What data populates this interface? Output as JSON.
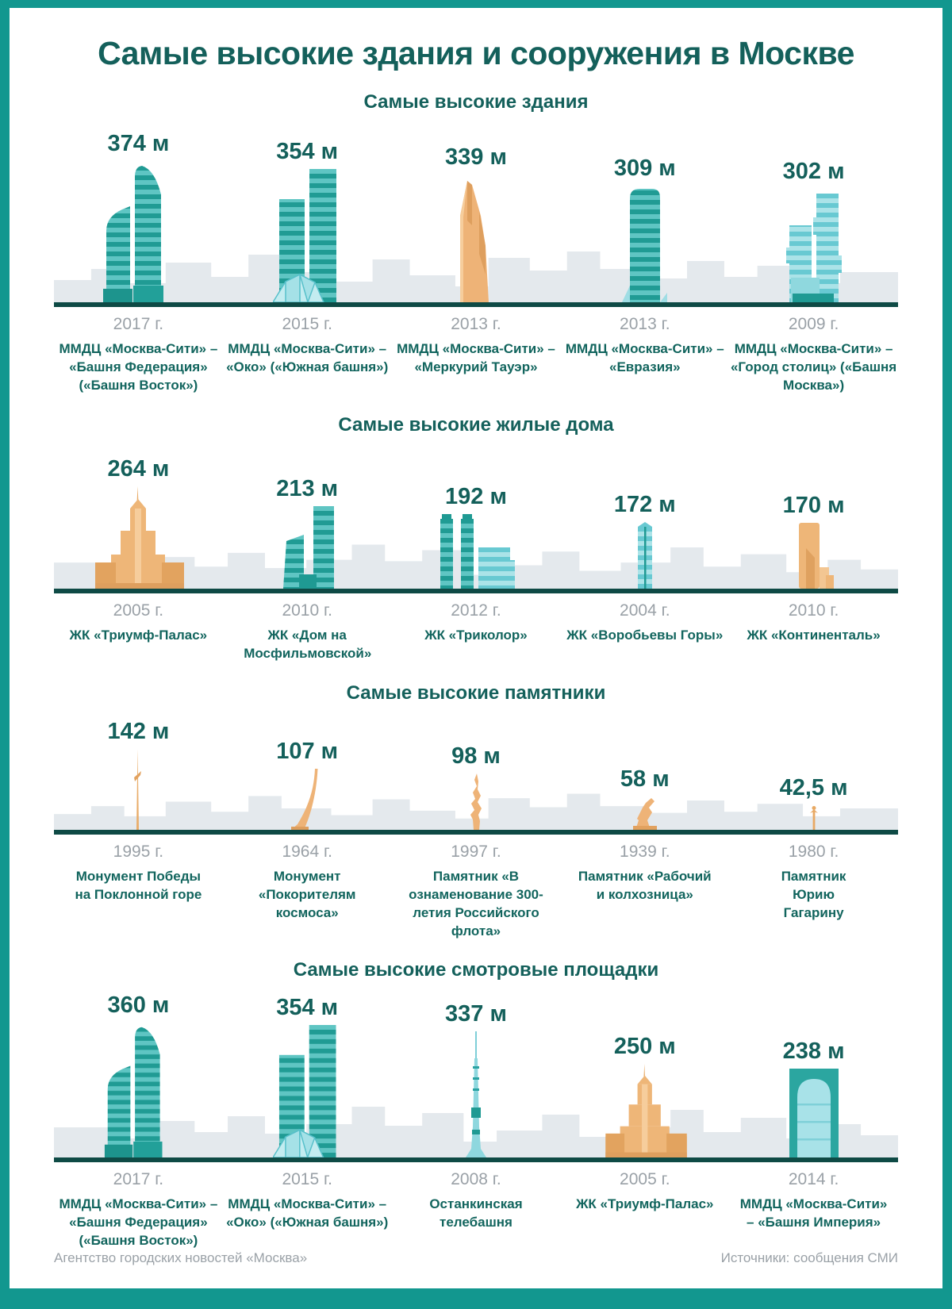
{
  "page": {
    "title": "Самые высокие здания и сооружения в Москве",
    "footer_left": "Агентство городских новостей «Москва»",
    "footer_right": "Источники: сообщения СМИ"
  },
  "colors": {
    "frame": "#12978f",
    "heading": "#14605b",
    "value_text": "#14605b",
    "year_text": "#9aa1a7",
    "name_text": "#12655e",
    "ground_line": "#0e4a45",
    "skyline": "#e4e9ed",
    "teal_dark": "#209b94",
    "teal_light": "#5fc5c3",
    "aqua_dark": "#68c9d2",
    "aqua_light": "#abe3e8",
    "orange": "#eeb377"
  },
  "sections": [
    {
      "title": "Самые высокие здания",
      "items": [
        {
          "value": "374 м",
          "year": "2017 г.",
          "name": "ММДЦ «Москва-Сити» – «Башня Федерация» («Башня Восток»)"
        },
        {
          "value": "354 м",
          "year": "2015 г.",
          "name": "ММДЦ «Москва-Сити» – «Око» («Южная башня»)"
        },
        {
          "value": "339 м",
          "year": "2013 г.",
          "name": "ММДЦ «Москва-Сити» – «Меркурий Тауэр»"
        },
        {
          "value": "309 м",
          "year": "2013 г.",
          "name": "ММДЦ «Москва-Сити» – «Евразия»"
        },
        {
          "value": "302 м",
          "year": "2009 г.",
          "name": "ММДЦ «Москва-Сити» – «Город столиц» («Башня Москва»)"
        }
      ]
    },
    {
      "title": "Самые высокие жилые дома",
      "items": [
        {
          "value": "264 м",
          "year": "2005 г.",
          "name": "ЖК «Триумф-Палас»"
        },
        {
          "value": "213 м",
          "year": "2010 г.",
          "name": "ЖК «Дом на Мосфильмовской»"
        },
        {
          "value": "192 м",
          "year": "2012 г.",
          "name": "ЖК «Триколор»"
        },
        {
          "value": "172 м",
          "year": "2004 г.",
          "name": "ЖК «Воробьевы Горы»"
        },
        {
          "value": "170 м",
          "year": "2010 г.",
          "name": "ЖК «Континенталь»"
        }
      ]
    },
    {
      "title": "Самые высокие памятники",
      "items": [
        {
          "value": "142 м",
          "year": "1995 г.",
          "name": "Монумент Победы на Поклонной горе"
        },
        {
          "value": "107 м",
          "year": "1964 г.",
          "name": "Монумент «Покорителям космоса»"
        },
        {
          "value": "98 м",
          "year": "1997 г.",
          "name": "Памятник «В ознаменование 300-летия Российского флота»"
        },
        {
          "value": "58 м",
          "year": "1939 г.",
          "name": "Памятник «Рабочий и колхозница»"
        },
        {
          "value": "42,5 м",
          "year": "1980 г.",
          "name": "Памятник Юрию Гагарину"
        }
      ]
    },
    {
      "title": "Самые высокие смотровые площадки",
      "items": [
        {
          "value": "360 м",
          "year": "2017 г.",
          "name": "ММДЦ «Москва-Сити» – «Башня Федерация» («Башня Восток»)"
        },
        {
          "value": "354 м",
          "year": "2015 г.",
          "name": "ММДЦ «Москва-Сити» – «Око» («Южная башня»)"
        },
        {
          "value": "337 м",
          "year": "2008 г.",
          "name": "Останкинская телебашня"
        },
        {
          "value": "250 м",
          "year": "2005 г.",
          "name": "ЖК «Триумф-Палас»"
        },
        {
          "value": "238 м",
          "year": "2014 г.",
          "name": "ММДЦ «Москва-Сити» – «Башня Империя»"
        }
      ]
    }
  ],
  "chart_data": [
    {
      "type": "bar",
      "style": "pictorial-buildings",
      "title": "Самые высокие здания",
      "unit": "м",
      "ylim": [
        0,
        400
      ],
      "grid": false,
      "legend": "none",
      "categories": [
        "ММДЦ «Москва-Сити» – «Башня Федерация» («Башня Восток»)",
        "ММДЦ «Москва-Сити» – «Око» («Южная башня»)",
        "ММДЦ «Москва-Сити» – «Меркурий Тауэр»",
        "ММДЦ «Москва-Сити» – «Евразия»",
        "ММДЦ «Москва-Сити» – «Город столиц» («Башня Москва»)"
      ],
      "values": [
        374,
        354,
        339,
        309,
        302
      ],
      "years": [
        "2017",
        "2015",
        "2013",
        "2013",
        "2009"
      ],
      "bar_colors": [
        "teal",
        "teal",
        "orange",
        "teal",
        "aqua"
      ]
    },
    {
      "type": "bar",
      "style": "pictorial-buildings",
      "title": "Самые высокие жилые дома",
      "unit": "м",
      "ylim": [
        0,
        280
      ],
      "grid": false,
      "legend": "none",
      "categories": [
        "ЖК «Триумф-Палас»",
        "ЖК «Дом на Мосфильмовской»",
        "ЖК «Триколор»",
        "ЖК «Воробьевы Горы»",
        "ЖК «Континенталь»"
      ],
      "values": [
        264,
        213,
        192,
        172,
        170
      ],
      "years": [
        "2005",
        "2010",
        "2012",
        "2004",
        "2010"
      ],
      "bar_colors": [
        "orange",
        "teal",
        "teal",
        "aqua",
        "orange"
      ]
    },
    {
      "type": "bar",
      "style": "pictorial-monuments",
      "title": "Самые высокие памятники",
      "unit": "м",
      "ylim": [
        0,
        150
      ],
      "grid": false,
      "legend": "none",
      "categories": [
        "Монумент Победы на Поклонной горе",
        "Монумент «Покорителям космоса»",
        "Памятник «В ознаменование 300-летия Российского флота»",
        "Памятник «Рабочий и колхозница»",
        "Памятник Юрию Гагарину"
      ],
      "values": [
        142,
        107,
        98,
        58,
        42.5
      ],
      "years": [
        "1995",
        "1964",
        "1997",
        "1939",
        "1980"
      ],
      "bar_colors": [
        "orange",
        "orange",
        "orange",
        "orange",
        "orange"
      ]
    },
    {
      "type": "bar",
      "style": "pictorial-buildings",
      "title": "Самые высокие смотровые площадки",
      "unit": "м",
      "ylim": [
        0,
        380
      ],
      "grid": false,
      "legend": "none",
      "categories": [
        "ММДЦ «Москва-Сити» – «Башня Федерация» («Башня Восток»)",
        "ММДЦ «Москва-Сити» – «Око» («Южная башня»)",
        "Останкинская телебашня",
        "ЖК «Триумф-Палас»",
        "ММДЦ «Москва-Сити» – «Башня Империя»"
      ],
      "values": [
        360,
        354,
        337,
        250,
        238
      ],
      "years": [
        "2017",
        "2015",
        "2008",
        "2005",
        "2014"
      ],
      "bar_colors": [
        "teal",
        "teal",
        "aqua",
        "orange",
        "teal"
      ]
    }
  ]
}
